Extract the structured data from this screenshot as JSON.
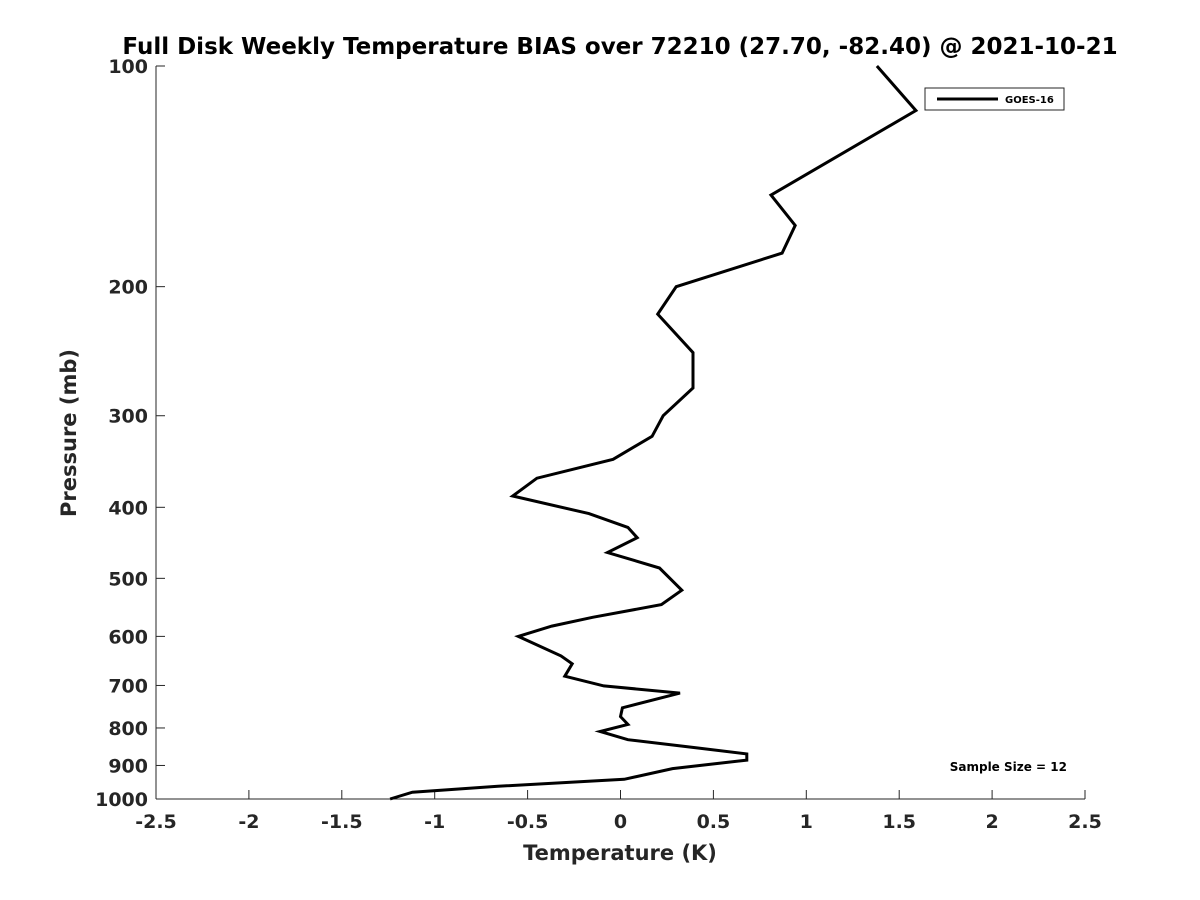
{
  "chart_data": {
    "type": "line",
    "title": "Full Disk Weekly Temperature BIAS over 72210 (27.70, -82.40) @ 2021-10-21",
    "xlabel": "Temperature (K)",
    "ylabel": "Pressure (mb)",
    "xlim": [
      -2.5,
      2.5
    ],
    "ylim": [
      1000,
      100
    ],
    "yscale": "log",
    "y_reversed": true,
    "grid": false,
    "legend_position": "top-right",
    "x_ticks": [
      -2.5,
      -2,
      -1.5,
      -1,
      -0.5,
      0,
      0.5,
      1,
      1.5,
      2,
      2.5
    ],
    "x_tick_labels": [
      "-2.5",
      "-2",
      "-1.5",
      "-1",
      "-0.5",
      "0",
      "0.5",
      "1",
      "1.5",
      "2",
      "2.5"
    ],
    "y_ticks": [
      100,
      200,
      300,
      400,
      500,
      600,
      700,
      800,
      900,
      1000
    ],
    "y_tick_labels": [
      "100",
      "200",
      "300",
      "400",
      "500",
      "600",
      "700",
      "800",
      "900",
      "1000"
    ],
    "series": [
      {
        "name": "GOES-16",
        "color": "#000000",
        "points": [
          [
            1.38,
            100
          ],
          [
            1.59,
            115
          ],
          [
            0.81,
            150
          ],
          [
            0.94,
            165
          ],
          [
            0.87,
            180
          ],
          [
            0.3,
            200
          ],
          [
            0.2,
            218
          ],
          [
            0.39,
            246
          ],
          [
            0.39,
            275
          ],
          [
            0.23,
            300
          ],
          [
            0.17,
            320
          ],
          [
            -0.04,
            344
          ],
          [
            -0.45,
            365
          ],
          [
            -0.58,
            386
          ],
          [
            -0.17,
            408
          ],
          [
            0.04,
            426
          ],
          [
            0.09,
            440
          ],
          [
            -0.07,
            461
          ],
          [
            0.21,
            484
          ],
          [
            0.28,
            504
          ],
          [
            0.33,
            519
          ],
          [
            0.22,
            543
          ],
          [
            -0.15,
            565
          ],
          [
            -0.37,
            581
          ],
          [
            -0.55,
            600
          ],
          [
            -0.32,
            638
          ],
          [
            -0.26,
            654
          ],
          [
            -0.3,
            680
          ],
          [
            -0.09,
            701
          ],
          [
            0.32,
            717
          ],
          [
            0.01,
            751
          ],
          [
            0.0,
            772
          ],
          [
            0.04,
            791
          ],
          [
            -0.11,
            809
          ],
          [
            0.04,
            830
          ],
          [
            0.4,
            851
          ],
          [
            0.68,
            868
          ],
          [
            0.68,
            885
          ],
          [
            0.28,
            909
          ],
          [
            0.02,
            940
          ],
          [
            -0.66,
            961
          ],
          [
            -1.12,
            979
          ],
          [
            -1.24,
            1000
          ]
        ]
      }
    ],
    "annotations": [
      {
        "text": "Sample Size = 12",
        "position": "bottom-right"
      }
    ]
  }
}
